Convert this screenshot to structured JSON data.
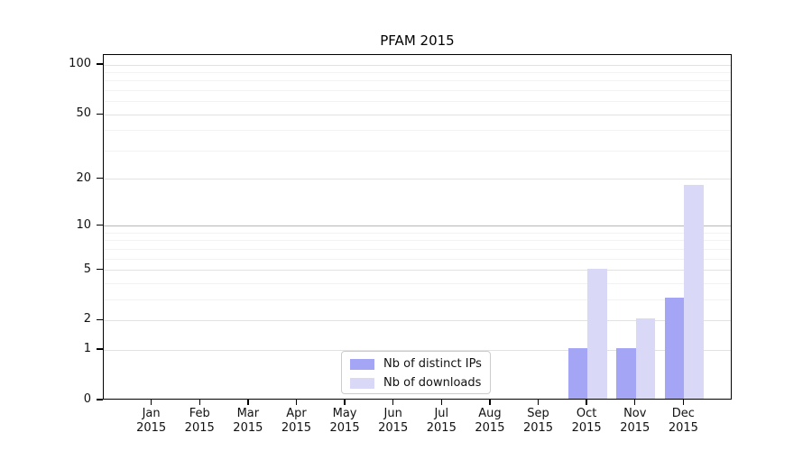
{
  "chart_data": {
    "type": "bar",
    "title": "PFAM 2015",
    "categories": [
      "Jan",
      "Feb",
      "Mar",
      "Apr",
      "May",
      "Jun",
      "Jul",
      "Aug",
      "Sep",
      "Oct",
      "Nov",
      "Dec"
    ],
    "category_year": "2015",
    "series": [
      {
        "name": "Nb of distinct IPs",
        "color": "#a5a5f5",
        "values": [
          0,
          0,
          0,
          0,
          0,
          0,
          0,
          0,
          0,
          1,
          1,
          3
        ]
      },
      {
        "name": "Nb of downloads",
        "color": "#d9d9f7",
        "values": [
          0,
          0,
          0,
          0,
          0,
          0,
          0,
          0,
          0,
          5,
          2,
          18
        ]
      }
    ],
    "xlabel": "",
    "ylabel": "",
    "yscale": "log1p",
    "ylim": [
      0,
      115
    ],
    "yticks": [
      0,
      1,
      2,
      5,
      10,
      20,
      50,
      100
    ],
    "y_minor_ticks": [
      3,
      4,
      6,
      7,
      8,
      9,
      30,
      40,
      60,
      70,
      80,
      90
    ],
    "grid": true,
    "legend_position": "lower-center",
    "colors": {
      "axis": "#000000",
      "major_grid": "#e2e2e2",
      "emphasized_grid": "#b7b7b7",
      "minor_grid": "#f2f2f2"
    }
  }
}
